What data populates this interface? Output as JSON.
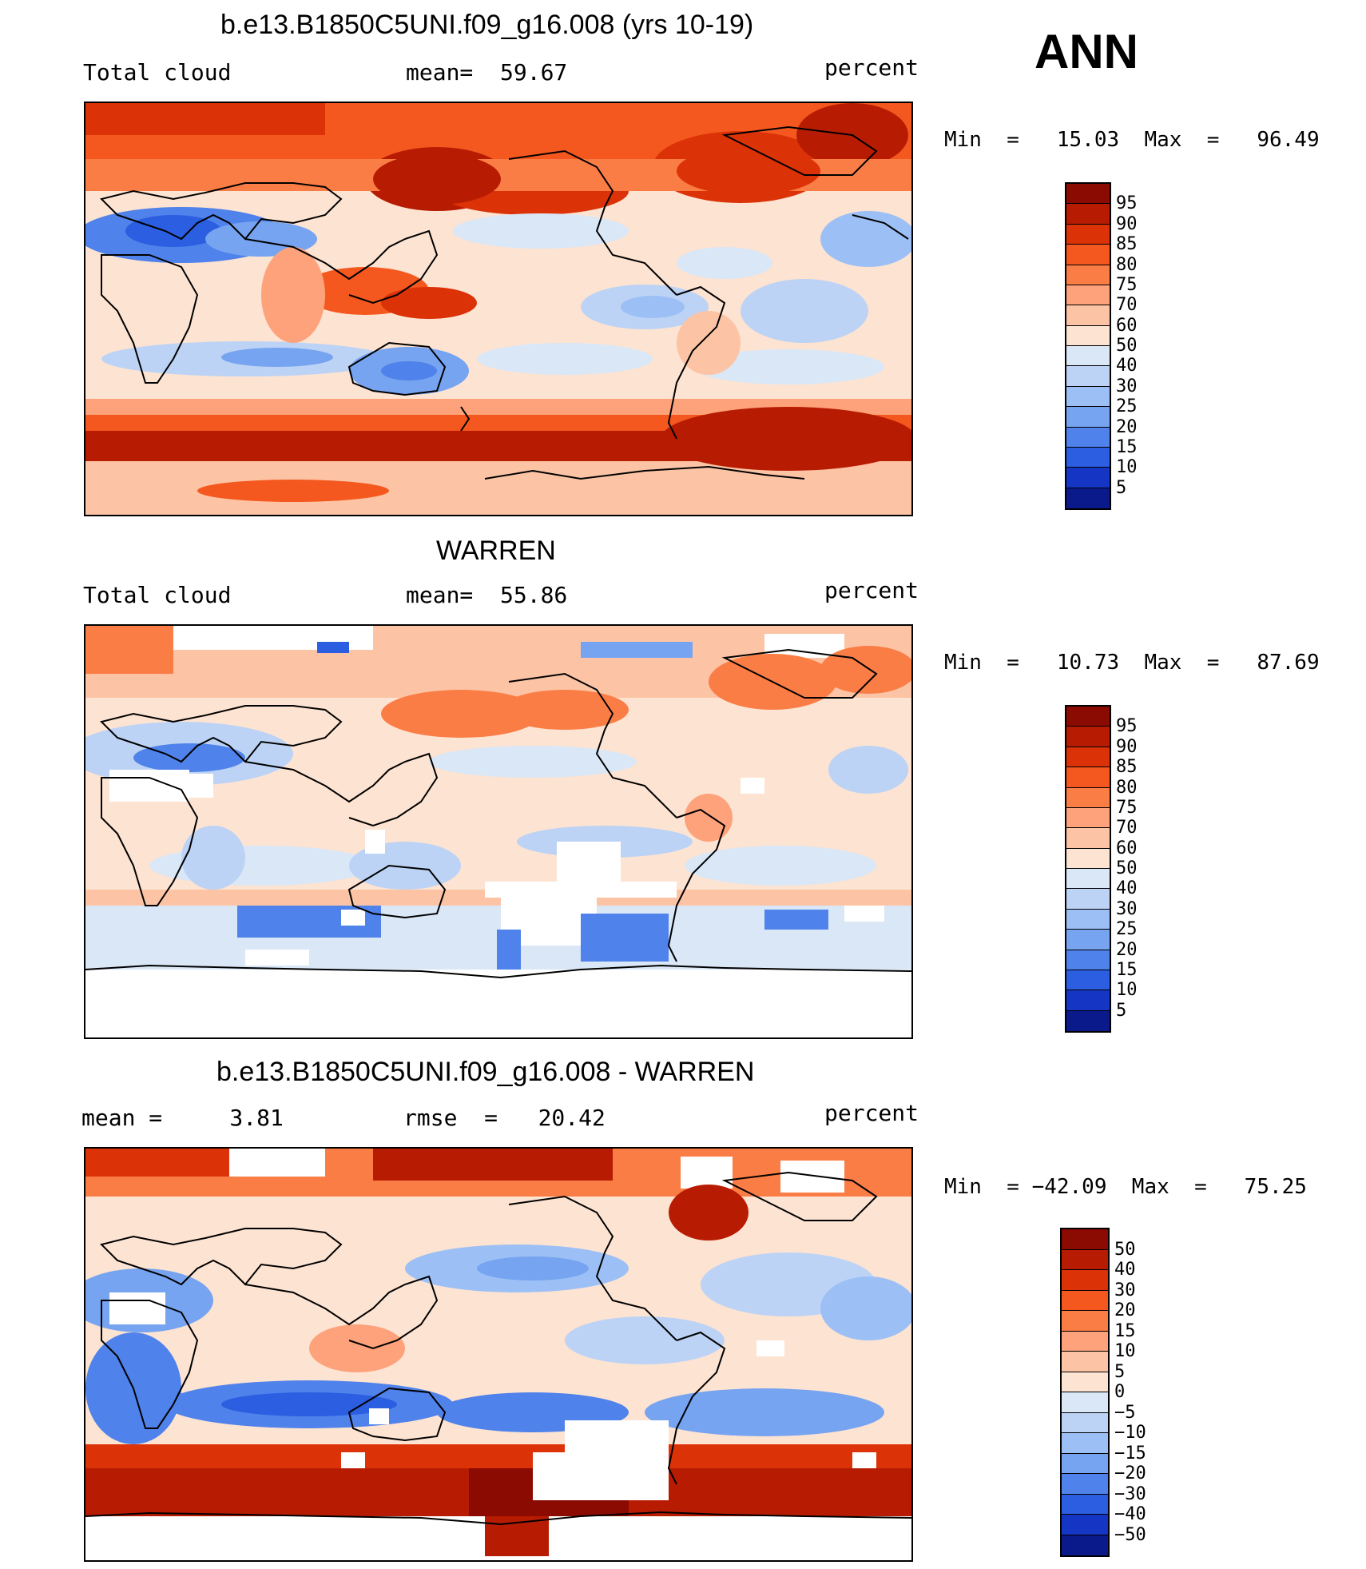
{
  "season_label": "ANN",
  "unit": "percent",
  "panels": [
    {
      "title": "b.e13.B1850C5UNI.f09_g16.008 (yrs 10-19)",
      "left_text": "Total cloud",
      "stat_text": "mean=  59.67",
      "unit_text": "percent",
      "minmax": "Min  =   15.03  Max  =   96.49",
      "scale": {
        "levels": [
          "95",
          "90",
          "85",
          "80",
          "75",
          "70",
          "60",
          "50",
          "40",
          "30",
          "25",
          "20",
          "15",
          "10",
          "5"
        ],
        "colors": [
          "#8b0a02",
          "#b71c02",
          "#dc3208",
          "#f4581f",
          "#fb7d46",
          "#fda27a",
          "#fcc4a5",
          "#fde3d2",
          "#d9e7f7",
          "#bcd3f5",
          "#9cc0f5",
          "#76a4f0",
          "#4f82ea",
          "#2b5ee0",
          "#1535c4",
          "#0b1a8a"
        ]
      }
    },
    {
      "title": "WARREN",
      "left_text": "Total cloud",
      "stat_text": "mean=  55.86",
      "unit_text": "percent",
      "minmax": "Min  =   10.73  Max  =   87.69",
      "scale": {
        "levels": [
          "95",
          "90",
          "85",
          "80",
          "75",
          "70",
          "60",
          "50",
          "40",
          "30",
          "25",
          "20",
          "15",
          "10",
          "5"
        ],
        "colors": [
          "#8b0a02",
          "#b71c02",
          "#dc3208",
          "#f4581f",
          "#fb7d46",
          "#fda27a",
          "#fcc4a5",
          "#fde3d2",
          "#d9e7f7",
          "#bcd3f5",
          "#9cc0f5",
          "#76a4f0",
          "#4f82ea",
          "#2b5ee0",
          "#1535c4",
          "#0b1a8a"
        ]
      }
    },
    {
      "title": "b.e13.B1850C5UNI.f09_g16.008 - WARREN",
      "left_text": "mean =     3.81",
      "stat_text": "rmse  =   20.42",
      "unit_text": "percent",
      "minmax": "Min  = −42.09  Max  =   75.25",
      "scale": {
        "levels": [
          "50",
          "40",
          "30",
          "20",
          "15",
          "10",
          "5",
          "0",
          "−5",
          "−10",
          "−15",
          "−20",
          "−30",
          "−40",
          "−50"
        ],
        "colors": [
          "#8b0a02",
          "#b71c02",
          "#dc3208",
          "#f4581f",
          "#fb7d46",
          "#fda27a",
          "#fcc4a5",
          "#fde3d2",
          "#d9e7f7",
          "#bcd3f5",
          "#9cc0f5",
          "#76a4f0",
          "#4f82ea",
          "#2b5ee0",
          "#1535c4",
          "#0b1a8a"
        ]
      }
    }
  ]
}
